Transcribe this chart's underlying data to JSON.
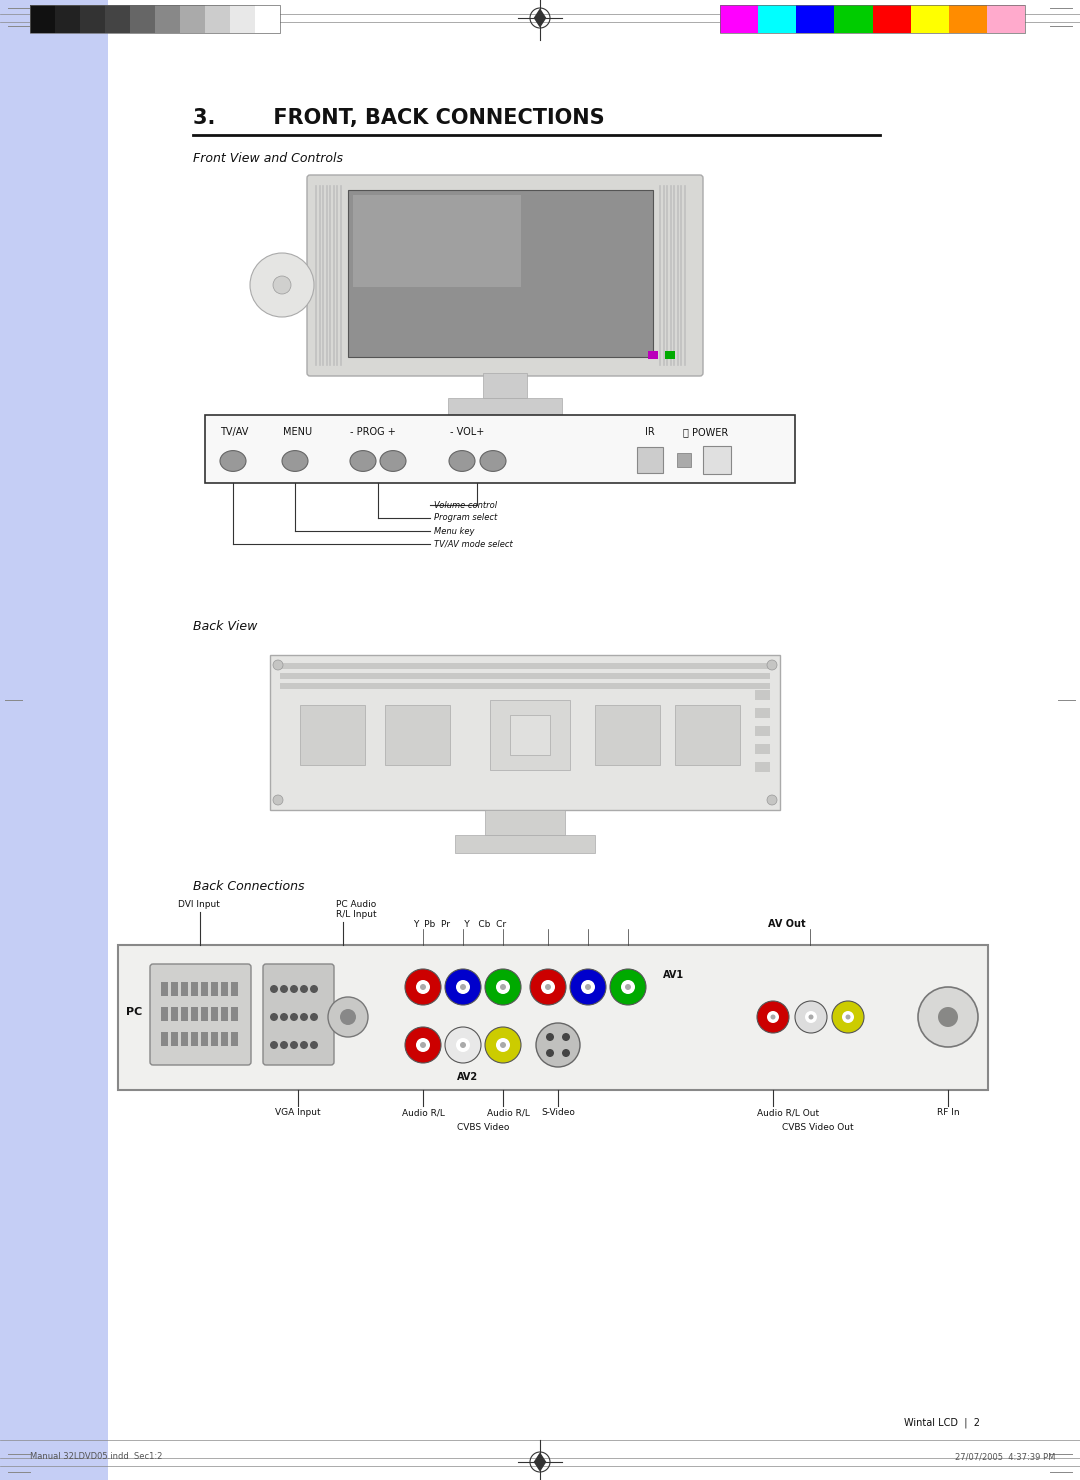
{
  "page_bg": "#ffffff",
  "left_bar_color": "#c5cef5",
  "grayscale_colors": [
    "#111111",
    "#222222",
    "#333333",
    "#444444",
    "#666666",
    "#888888",
    "#aaaaaa",
    "#cccccc",
    "#e8e8e8",
    "#ffffff"
  ],
  "color_bars": [
    "#ff00ff",
    "#00ffff",
    "#0000ff",
    "#00cc00",
    "#ff0000",
    "#ffff00",
    "#ff8c00",
    "#ffaacc"
  ],
  "section_title": "3.        FRONT, BACK CONNECTIONS",
  "front_view_label": "Front View and Controls",
  "back_view_label": "Back View",
  "back_connections_label": "Back Connections",
  "footer_left": "Manual 32LDVD05.indd  Sec1:2",
  "footer_right": "27/07/2005  4:37:39 PM",
  "footer_page": "Wintal LCD  |  2",
  "control_callouts": [
    "Volume control",
    "Program select",
    "Menu key",
    "TV/AV mode select"
  ],
  "av2_colors": [
    "#cc0000",
    "#0000cc",
    "#00aa00",
    "#cc0000",
    "#0000cc",
    "#00aa00"
  ],
  "av1_out_colors": [
    "#cc0000",
    "#cccccc",
    "#cccc00"
  ],
  "rca_inner": "#ffffff"
}
